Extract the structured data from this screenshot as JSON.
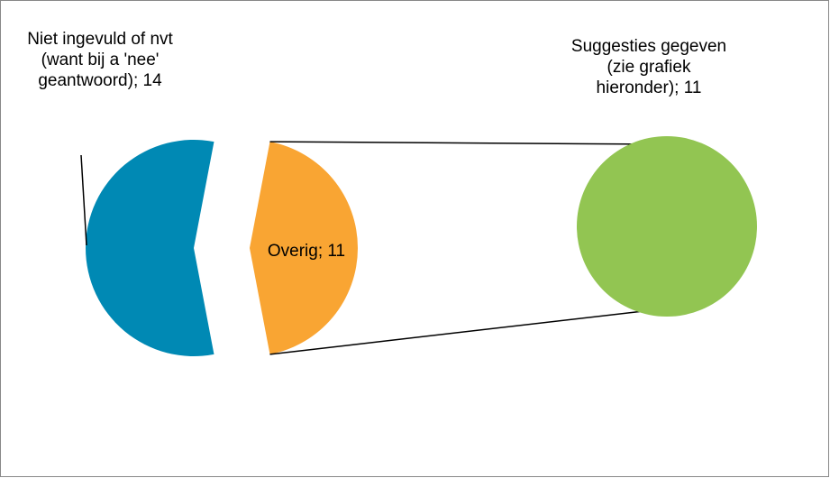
{
  "chart_data": {
    "type": "pie-of-pie",
    "values": [
      14,
      11
    ],
    "value_labels": [
      "Niet ingevuld of nvt (want bij a 'nee' geantwoord); 14",
      "Overig; 11"
    ],
    "colors": [
      "#0089b4",
      "#f9a533"
    ],
    "secondary": {
      "values": [
        11
      ],
      "value_labels": [
        "Suggesties gegeven (zie grafiek hieronder); 11"
      ],
      "colors": [
        "#92c552"
      ]
    }
  }
}
